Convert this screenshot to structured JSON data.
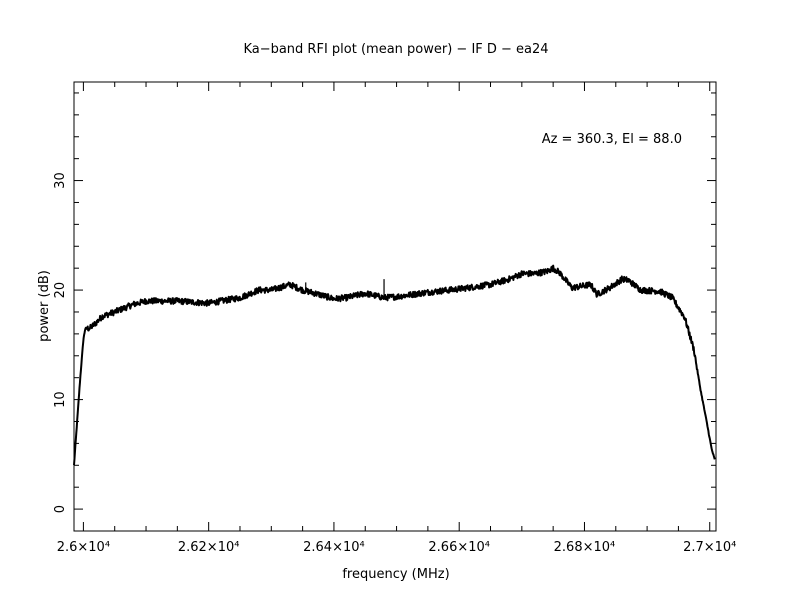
{
  "chart_data": {
    "type": "line",
    "title": "Ka−band RFI plot (mean power) − IF D − ea24",
    "xlabel": "frequency (MHz)",
    "ylabel": "power (dB)",
    "annotation": "Az = 360.3, El = 88.0",
    "xlim": [
      25985,
      27010
    ],
    "ylim": [
      -2,
      39
    ],
    "x_ticks": [
      {
        "value": 26000,
        "label": "2.6×10⁴"
      },
      {
        "value": 26200,
        "label": "2.62×10⁴"
      },
      {
        "value": 26400,
        "label": "2.64×10⁴"
      },
      {
        "value": 26600,
        "label": "2.66×10⁴"
      },
      {
        "value": 26800,
        "label": "2.68×10⁴"
      },
      {
        "value": 27000,
        "label": "2.7×10⁴"
      }
    ],
    "y_ticks": [
      {
        "value": 0,
        "label": "0"
      },
      {
        "value": 10,
        "label": "10"
      },
      {
        "value": 20,
        "label": "20"
      },
      {
        "value": 30,
        "label": "30"
      }
    ],
    "grid": false,
    "line_color": "#000000",
    "series": [
      {
        "x": [
          25985,
          25990,
          25995,
          26000,
          26003,
          26010,
          26020,
          26030,
          26050,
          26080,
          26100,
          26150,
          26200,
          26250,
          26280,
          26300,
          26330,
          26350,
          26370,
          26400,
          26420,
          26450,
          26480,
          26500,
          26550,
          26600,
          26650,
          26680,
          26700,
          26720,
          26740,
          26750,
          26760,
          26780,
          26800,
          26810,
          26820,
          26840,
          26860,
          26870,
          26890,
          26920,
          26940,
          26960,
          26975,
          26985,
          26995,
          27003,
          27008
        ],
        "y": [
          4.0,
          8.0,
          12.0,
          15.5,
          16.5,
          16.5,
          17.0,
          17.6,
          18.0,
          18.7,
          19.0,
          19.0,
          18.8,
          19.3,
          20.0,
          20.0,
          20.5,
          20.0,
          19.7,
          19.2,
          19.3,
          19.7,
          19.3,
          19.4,
          19.8,
          20.1,
          20.5,
          21.0,
          21.5,
          21.5,
          21.7,
          22.0,
          21.6,
          20.2,
          20.4,
          20.5,
          19.6,
          20.2,
          21.0,
          20.9,
          20.0,
          19.9,
          19.3,
          17.5,
          14.5,
          11.0,
          8.0,
          5.5,
          4.5
        ],
        "spikes": [
          {
            "x": 26355,
            "y": 20.7
          },
          {
            "x": 26480,
            "y": 21.0
          }
        ]
      }
    ]
  }
}
